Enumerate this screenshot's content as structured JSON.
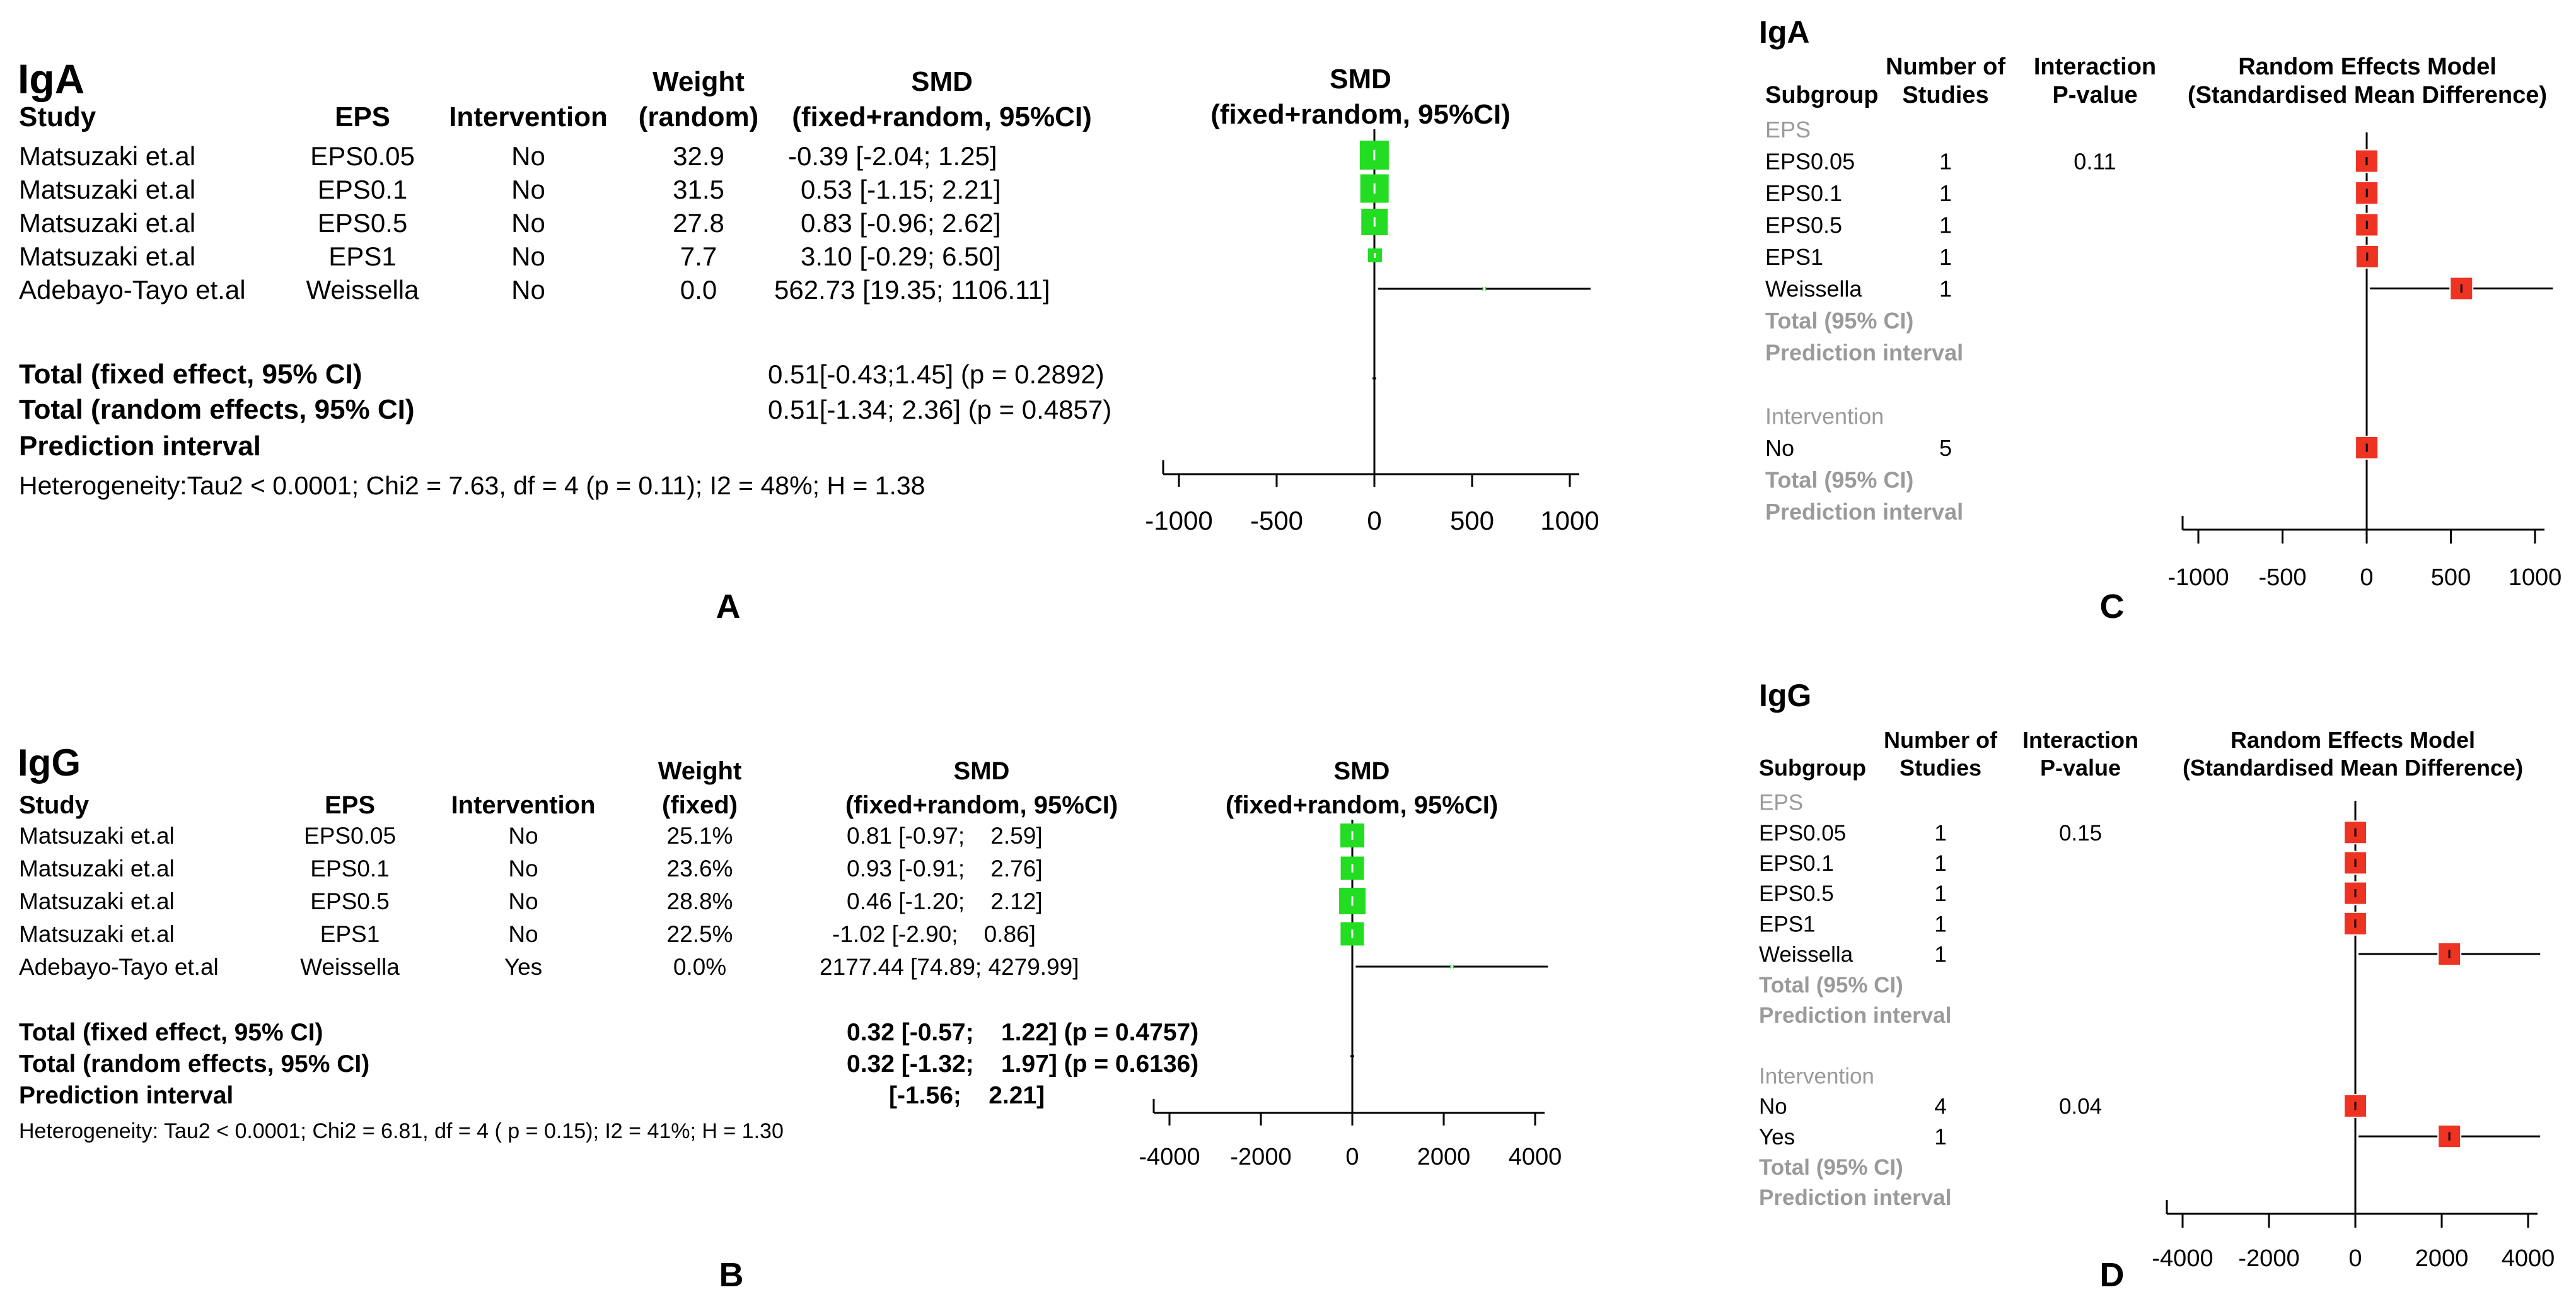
{
  "panels": [
    {
      "id": "A",
      "letter": "A",
      "title": "IgA",
      "headers": {
        "study": "Study",
        "eps": "EPS",
        "intervention": "Intervention",
        "weight": [
          "Weight",
          "(random)"
        ],
        "smd": [
          "SMD",
          "(fixed+random, 95%CI)"
        ],
        "plot": [
          "SMD",
          "(fixed+random, 95%CI)"
        ]
      },
      "rows": [
        {
          "study": "Matsuzaki et.al",
          "eps": "EPS0.05",
          "intervention": "No",
          "weight": "32.9",
          "smd": "-0.39 [-2.04; 1.25]",
          "est": -0.39,
          "lo": -2.04,
          "hi": 1.25
        },
        {
          "study": "Matsuzaki et.al",
          "eps": "EPS0.1",
          "intervention": "No",
          "weight": "31.5",
          "smd": "0.53 [-1.15; 2.21]",
          "est": 0.53,
          "lo": -1.15,
          "hi": 2.21
        },
        {
          "study": "Matsuzaki et.al",
          "eps": "EPS0.5",
          "intervention": "No",
          "weight": "27.8",
          "smd": "0.83 [-0.96; 2.62]",
          "est": 0.83,
          "lo": -0.96,
          "hi": 2.62
        },
        {
          "study": "Matsuzaki et.al",
          "eps": "EPS1",
          "intervention": "No",
          "weight": "7.7",
          "smd": "3.10 [-0.29; 6.50]",
          "est": 3.1,
          "lo": -0.29,
          "hi": 6.5
        },
        {
          "study": "Adebayo-Tayo et.al",
          "eps": "Weissella",
          "intervention": "No",
          "weight": "0.0",
          "smd": "562.73 [19.35; 1106.11]",
          "est": 562.73,
          "lo": 19.35,
          "hi": 1106.11
        }
      ],
      "totals": [
        {
          "label": "Total (fixed effect, 95% CI)",
          "value": "0.51[-0.43;1.45] (p = 0.2892)"
        },
        {
          "label": "Total (random effects, 95% CI)",
          "value": "0.51[-1.34; 2.36] (p = 0.4857)"
        },
        {
          "label": "Prediction interval",
          "value": ""
        }
      ],
      "heterogeneity": "Heterogeneity:Tau2 < 0.0001; Chi2 = 7.63, df = 4 (p = 0.11); I2 = 48%; H = 1.38",
      "axis": {
        "min": -1000,
        "max": 1000,
        "ticks": [
          "-1000",
          "-500",
          "0",
          "500",
          "1000"
        ]
      }
    },
    {
      "id": "B",
      "letter": "B",
      "title": "IgG",
      "headers": {
        "study": "Study",
        "eps": "EPS",
        "intervention": "Intervention",
        "weight": [
          "Weight",
          "(fixed)"
        ],
        "smd": [
          "SMD",
          "(fixed+random, 95%CI)"
        ],
        "plot": [
          "SMD",
          "(fixed+random, 95%CI)"
        ]
      },
      "rows": [
        {
          "study": "Matsuzaki et.al",
          "eps": "EPS0.05",
          "intervention": "No",
          "weight": "25.1%",
          "smd": "0.81 [-0.97;    2.59]",
          "est": 0.81,
          "lo": -0.97,
          "hi": 2.59
        },
        {
          "study": "Matsuzaki et.al",
          "eps": "EPS0.1",
          "intervention": "No",
          "weight": "23.6%",
          "smd": "0.93 [-0.91;    2.76]",
          "est": 0.93,
          "lo": -0.91,
          "hi": 2.76
        },
        {
          "study": "Matsuzaki et.al",
          "eps": "EPS0.5",
          "intervention": "No",
          "weight": "28.8%",
          "smd": "0.46 [-1.20;    2.12]",
          "est": 0.46,
          "lo": -1.2,
          "hi": 2.12
        },
        {
          "study": "Matsuzaki et.al",
          "eps": "EPS1",
          "intervention": "No",
          "weight": "22.5%",
          "smd": "-1.02 [-2.90;    0.86]",
          "est": -1.02,
          "lo": -2.9,
          "hi": 0.86
        },
        {
          "study": "Adebayo-Tayo et.al",
          "eps": "Weissella",
          "intervention": "Yes",
          "weight": "0.0%",
          "smd": "2177.44 [74.89; 4279.99]",
          "est": 2177.44,
          "lo": 74.89,
          "hi": 4279.99
        }
      ],
      "totals": [
        {
          "label": "Total (fixed effect, 95% CI)",
          "value": "0.32 [-0.57;    1.22] (p = 0.4757)"
        },
        {
          "label": "Total (random effects, 95% CI)",
          "value": "0.32 [-1.32;    1.97] (p = 0.6136)"
        },
        {
          "label": "Prediction interval",
          "value": "[-1.56;    2.21]"
        }
      ],
      "heterogeneity": "Heterogeneity: Tau2 < 0.0001; Chi2 = 6.81, df = 4 ( p = 0.15); I2 = 41%; H = 1.30",
      "axis": {
        "min": -4000,
        "max": 4000,
        "ticks": [
          "-4000",
          "-2000",
          "0",
          "2000",
          "4000"
        ]
      }
    },
    {
      "id": "C",
      "letter": "C",
      "title": "IgA",
      "headers": {
        "subgroup": "Subgroup",
        "n": [
          "Number of",
          "Studies"
        ],
        "p": [
          "Interaction",
          "P-value"
        ],
        "model": [
          "Random Effects Model",
          "(Standardised Mean Difference)"
        ]
      },
      "rows": [
        {
          "kind": "group",
          "label": "EPS"
        },
        {
          "kind": "item",
          "label": "EPS0.05",
          "n": "1",
          "p": "0.11",
          "est": -0.39,
          "lo": -2.04,
          "hi": 1.25
        },
        {
          "kind": "item",
          "label": "EPS0.1",
          "n": "1",
          "p": "",
          "est": 0.53,
          "lo": -1.15,
          "hi": 2.21
        },
        {
          "kind": "item",
          "label": "EPS0.5",
          "n": "1",
          "p": "",
          "est": 0.83,
          "lo": -0.96,
          "hi": 2.62
        },
        {
          "kind": "item",
          "label": "EPS1",
          "n": "1",
          "p": "",
          "est": 3.1,
          "lo": -0.29,
          "hi": 6.5
        },
        {
          "kind": "item",
          "label": "Weissella",
          "n": "1",
          "p": "",
          "est": 562.73,
          "lo": 19.35,
          "hi": 1106.11
        },
        {
          "kind": "gray",
          "label": "Total (95% CI)"
        },
        {
          "kind": "gray",
          "label": "Prediction interval"
        },
        {
          "kind": "blank",
          "label": ""
        },
        {
          "kind": "group",
          "label": "Intervention"
        },
        {
          "kind": "item",
          "label": "No",
          "n": "5",
          "p": "",
          "est": 0.51,
          "lo": -1.34,
          "hi": 2.36
        },
        {
          "kind": "gray",
          "label": "Total (95% CI)"
        },
        {
          "kind": "gray",
          "label": "Prediction interval"
        }
      ],
      "axis": {
        "min": -1000,
        "max": 1000,
        "ticks": [
          "-1000",
          "-500",
          "0",
          "500",
          "1000"
        ]
      }
    },
    {
      "id": "D",
      "letter": "D",
      "title": "IgG",
      "headers": {
        "subgroup": "Subgroup",
        "n": [
          "Number of",
          "Studies"
        ],
        "p": [
          "Interaction",
          "P-value"
        ],
        "model": [
          "Random Effects Model",
          "(Standardised Mean Difference)"
        ]
      },
      "rows": [
        {
          "kind": "group",
          "label": "EPS"
        },
        {
          "kind": "item",
          "label": "EPS0.05",
          "n": "1",
          "p": "0.15",
          "est": 0.81,
          "lo": -0.97,
          "hi": 2.59
        },
        {
          "kind": "item",
          "label": "EPS0.1",
          "n": "1",
          "p": "",
          "est": 0.93,
          "lo": -0.91,
          "hi": 2.76
        },
        {
          "kind": "item",
          "label": "EPS0.5",
          "n": "1",
          "p": "",
          "est": 0.46,
          "lo": -1.2,
          "hi": 2.12
        },
        {
          "kind": "item",
          "label": "EPS1",
          "n": "1",
          "p": "",
          "est": -1.02,
          "lo": -2.9,
          "hi": 0.86
        },
        {
          "kind": "item",
          "label": "Weissella",
          "n": "1",
          "p": "",
          "est": 2177.44,
          "lo": 74.89,
          "hi": 4279.99
        },
        {
          "kind": "gray",
          "label": "Total (95% CI)"
        },
        {
          "kind": "gray",
          "label": "Prediction interval"
        },
        {
          "kind": "blank",
          "label": ""
        },
        {
          "kind": "group",
          "label": "Intervention"
        },
        {
          "kind": "item",
          "label": "No",
          "n": "4",
          "p": "0.04",
          "est": 0.32,
          "lo": -1.32,
          "hi": 1.97
        },
        {
          "kind": "item",
          "label": "Yes",
          "n": "1",
          "p": "",
          "est": 2177.44,
          "lo": 74.89,
          "hi": 4279.99
        },
        {
          "kind": "gray",
          "label": "Total (95% CI)"
        },
        {
          "kind": "gray",
          "label": "Prediction interval"
        }
      ],
      "axis": {
        "min": -4000,
        "max": 4000,
        "ticks": [
          "-4000",
          "-2000",
          "0",
          "2000",
          "4000"
        ]
      }
    }
  ],
  "colors": {
    "square_ab": "#22dd22",
    "square_cd": "#ee3322",
    "line": "#000000",
    "gray_text": "#9a9a9a"
  },
  "chart_data": [
    {
      "type": "forest",
      "title": "IgA",
      "xlabel": "SMD (fixed+random, 95%CI)",
      "xlim": [
        -1000,
        1000
      ],
      "categories": [
        "EPS0.05",
        "EPS0.1",
        "EPS0.5",
        "EPS1",
        "Weissella"
      ],
      "estimates": [
        -0.39,
        0.53,
        0.83,
        3.1,
        562.73
      ],
      "ci_low": [
        -2.04,
        -1.15,
        -0.96,
        -0.29,
        19.35
      ],
      "ci_high": [
        1.25,
        2.21,
        2.62,
        6.5,
        1106.11
      ],
      "weights": [
        32.9,
        31.5,
        27.8,
        7.7,
        0.0
      ]
    },
    {
      "type": "forest",
      "title": "IgG",
      "xlabel": "SMD (fixed+random, 95%CI)",
      "xlim": [
        -4000,
        4000
      ],
      "categories": [
        "EPS0.05",
        "EPS0.1",
        "EPS0.5",
        "EPS1",
        "Weissella"
      ],
      "estimates": [
        0.81,
        0.93,
        0.46,
        -1.02,
        2177.44
      ],
      "ci_low": [
        -0.97,
        -0.91,
        -1.2,
        -2.9,
        74.89
      ],
      "ci_high": [
        2.59,
        2.76,
        2.12,
        0.86,
        4279.99
      ],
      "weights": [
        25.1,
        23.6,
        28.8,
        22.5,
        0.0
      ]
    },
    {
      "type": "forest",
      "title": "IgA subgroup (Random Effects Model)",
      "xlim": [
        -1000,
        1000
      ],
      "categories": [
        "EPS0.05",
        "EPS0.1",
        "EPS0.5",
        "EPS1",
        "Weissella",
        "No"
      ],
      "estimates": [
        -0.39,
        0.53,
        0.83,
        3.1,
        562.73,
        0.51
      ]
    },
    {
      "type": "forest",
      "title": "IgG subgroup (Random Effects Model)",
      "xlim": [
        -4000,
        4000
      ],
      "categories": [
        "EPS0.05",
        "EPS0.1",
        "EPS0.5",
        "EPS1",
        "Weissella",
        "No",
        "Yes"
      ],
      "estimates": [
        0.81,
        0.93,
        0.46,
        -1.02,
        2177.44,
        0.32,
        2177.44
      ]
    }
  ]
}
